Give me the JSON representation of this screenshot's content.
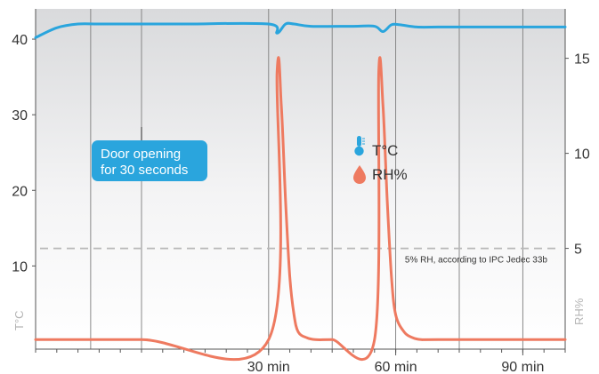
{
  "chart_data": {
    "type": "line",
    "title": "",
    "xlabel": "",
    "x_unit": "min",
    "xlim": [
      -25,
      100
    ],
    "x_ticks": [
      {
        "value": 30,
        "label": "30 min"
      },
      {
        "value": 60,
        "label": "60 min"
      },
      {
        "value": 90,
        "label": "90 min"
      }
    ],
    "left_axis": {
      "label": "T°C",
      "ylim": [
        -1,
        44
      ],
      "ticks": [
        {
          "value": 10,
          "label": "10"
        },
        {
          "value": 20,
          "label": "20"
        },
        {
          "value": 30,
          "label": "30"
        },
        {
          "value": 40,
          "label": "40"
        }
      ]
    },
    "right_axis": {
      "label": "RH%",
      "ylim": [
        -0.3,
        17.6
      ],
      "ticks": [
        {
          "value": 5,
          "label": "5"
        },
        {
          "value": 10,
          "label": "10"
        },
        {
          "value": 15,
          "label": "15"
        }
      ]
    },
    "grid": true,
    "vertical_gridlines": [
      -12,
      0,
      30,
      45,
      60,
      75,
      90
    ],
    "series": [
      {
        "name": "T°C",
        "axis": "left",
        "color": "#2aa5dd",
        "x": [
          -25,
          -20,
          -15,
          -10,
          0,
          10,
          30,
          32,
          34,
          36,
          40,
          50,
          55,
          57,
          59,
          61,
          65,
          70,
          75,
          80,
          90,
          100
        ],
        "y": [
          40.2,
          41.5,
          42.0,
          42.0,
          42.0,
          42.0,
          42.0,
          40.8,
          42.0,
          42.0,
          41.7,
          41.7,
          41.7,
          41.0,
          41.9,
          41.9,
          41.6,
          41.6,
          41.6,
          41.6,
          41.6,
          41.6
        ]
      },
      {
        "name": "RH%",
        "axis": "right",
        "color": "#ee7a60",
        "x": [
          -25,
          0,
          30,
          32,
          33,
          34,
          35,
          36,
          37,
          39,
          41,
          45,
          55,
          56,
          57,
          58,
          59,
          60,
          62,
          64,
          66,
          70,
          100
        ],
        "y": [
          0.2,
          0.2,
          0.2,
          14.3,
          12.5,
          7.5,
          3.5,
          1.5,
          0.6,
          0.3,
          0.2,
          0.2,
          0.2,
          14.3,
          12.5,
          7.5,
          3.5,
          1.5,
          0.6,
          0.3,
          0.2,
          0.2,
          0.2
        ]
      }
    ],
    "reference_line": {
      "axis": "right",
      "value": 5,
      "label": "5% RH, according to IPC Jedec 33b",
      "style": "dashed",
      "color": "#b8b8b8"
    },
    "callout": {
      "lines": [
        "Door opening",
        "for 30 seconds"
      ],
      "x": 0,
      "color": "#2aa5dd"
    },
    "legend": {
      "placement": "center-right",
      "items": [
        {
          "label": "T°C",
          "icon": "thermometer-icon",
          "color": "#2aa5dd"
        },
        {
          "label": "RH%",
          "icon": "droplet-icon",
          "color": "#ee7a60"
        }
      ]
    }
  }
}
